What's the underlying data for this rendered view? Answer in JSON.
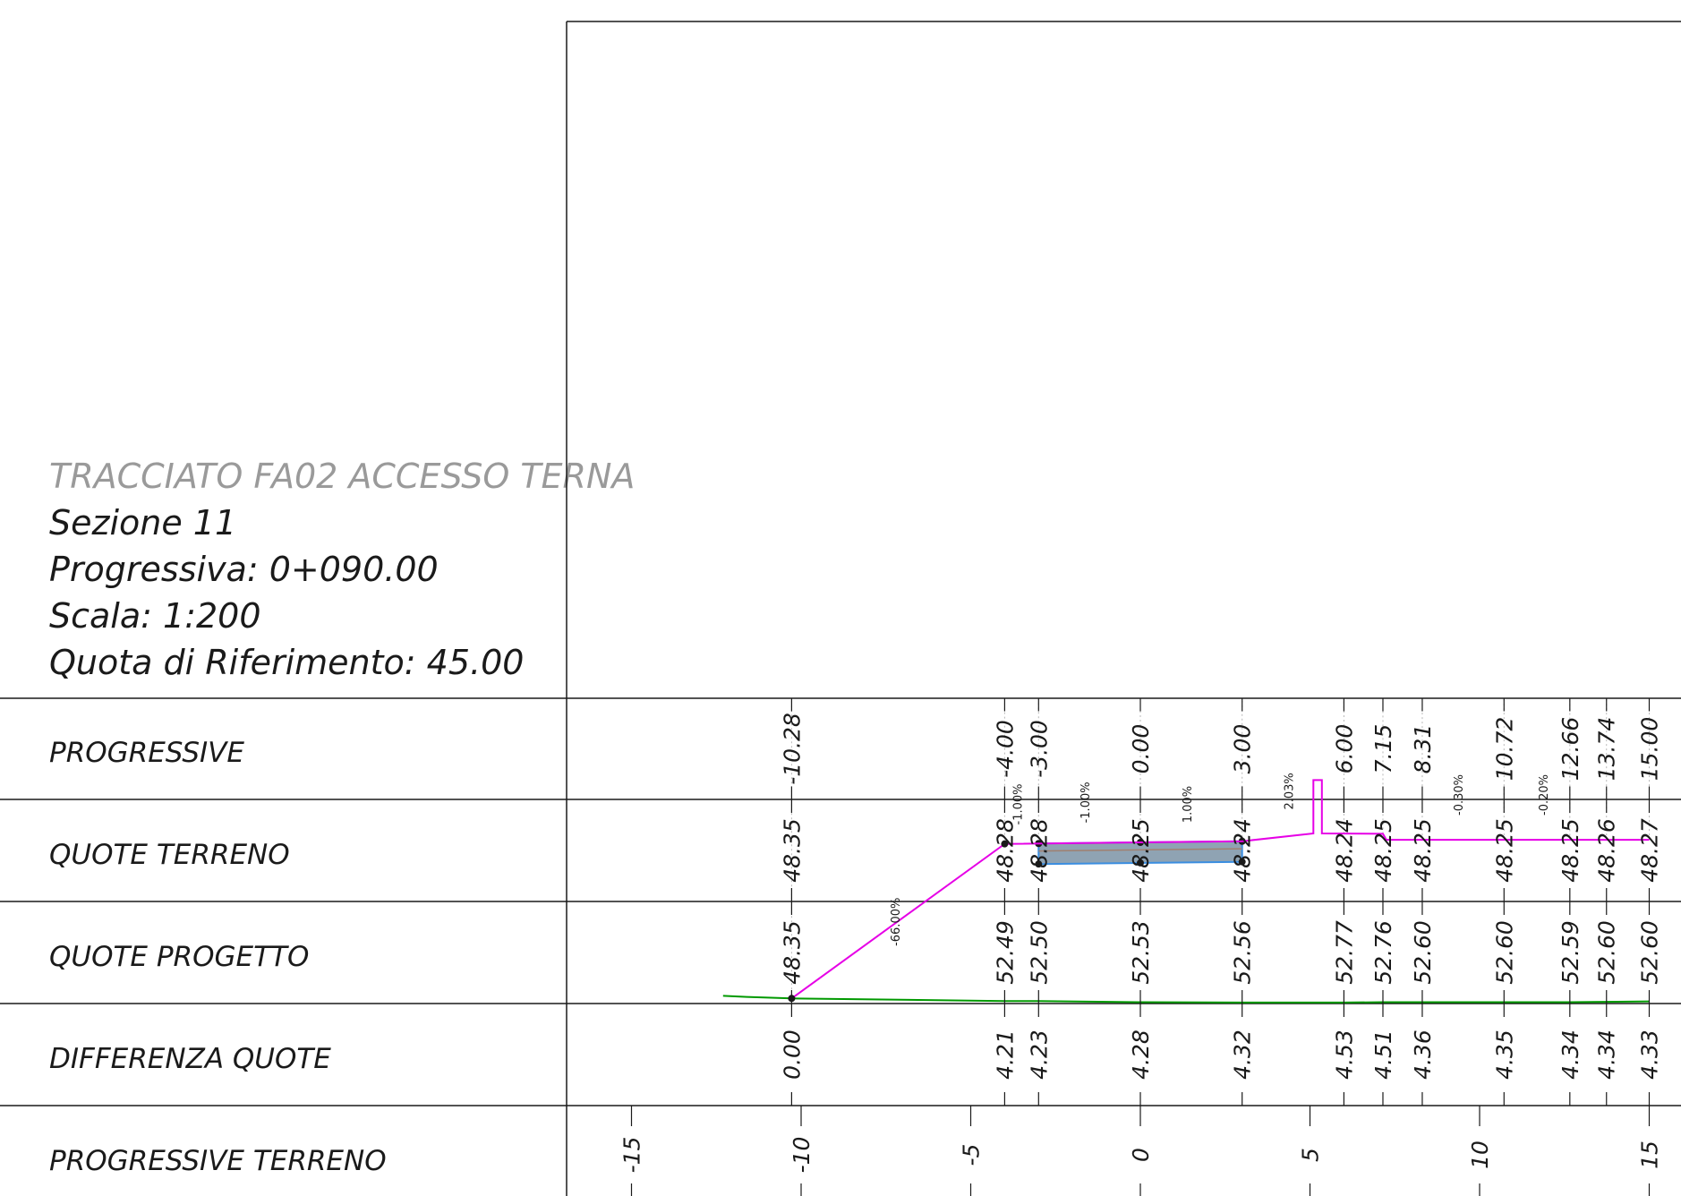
{
  "info": {
    "title": "TRACCIATO FA02 ACCESSO TERNA",
    "section": "Sezione 11",
    "progressive": "Progressiva: 0+090.00",
    "scale": "Scala: 1:200",
    "reference": "Quota di Riferimento: 45.00"
  },
  "table": {
    "row_labels": [
      "PROGRESSIVE",
      "QUOTE TERRENO",
      "QUOTE PROGETTO",
      "DIFFERENZA QUOTE",
      "PROGRESSIVE TERRENO"
    ]
  },
  "chart_data": {
    "type": "cross-section",
    "reference_elevation": 45.0,
    "stations": [
      -10.28,
      -4.0,
      -3.0,
      0.0,
      3.0,
      6.0,
      7.15,
      8.31,
      10.72,
      12.66,
      13.74,
      15.0
    ],
    "station_labels": [
      "-10.28",
      "-4.00",
      "-3.00",
      "0.00",
      "3.00",
      "6.00",
      "7.15",
      "8.31",
      "10.72",
      "12.66",
      "13.74",
      "15.00"
    ],
    "ground_elevations": [
      "48.35",
      "48.28",
      "48.28",
      "48.25",
      "48.24",
      "48.24",
      "48.25",
      "48.25",
      "48.25",
      "48.25",
      "48.26",
      "48.27"
    ],
    "design_elevations": [
      "48.35",
      "52.49",
      "52.50",
      "52.53",
      "52.56",
      "52.77",
      "52.76",
      "52.60",
      "52.60",
      "52.59",
      "52.60",
      "52.60"
    ],
    "differences": [
      "0.00",
      "4.21",
      "4.23",
      "4.28",
      "4.32",
      "4.53",
      "4.51",
      "4.36",
      "4.35",
      "4.34",
      "4.34",
      "4.33"
    ],
    "ground_ticks": [
      -15,
      -10,
      -5,
      0,
      5,
      10,
      15
    ],
    "ground_tick_labels": [
      "-15",
      "-10",
      "-5",
      "0",
      "5",
      "10",
      "15"
    ],
    "slopes": [
      {
        "label": "-66.00%",
        "x": -7.1,
        "y": 50.4
      },
      {
        "label": "-1.00%",
        "x": -3.5,
        "y": 53.55
      },
      {
        "label": "-1.00%",
        "x": -1.5,
        "y": 53.6
      },
      {
        "label": "1.00%",
        "x": 1.5,
        "y": 53.55
      },
      {
        "label": "2.03%",
        "x": 4.5,
        "y": 53.9
      },
      {
        "label": "-0.30%",
        "x": 9.5,
        "y": 53.8
      },
      {
        "label": "-0.20%",
        "x": 12.0,
        "y": 53.8
      }
    ],
    "colors": {
      "design": "#e600e6",
      "ground": "#009900",
      "pavement_fill": "#8fa3b3",
      "pavement_edge": "#3b8ee0",
      "grid": "#b8b8b8",
      "frame": "#1a1a1a"
    }
  }
}
